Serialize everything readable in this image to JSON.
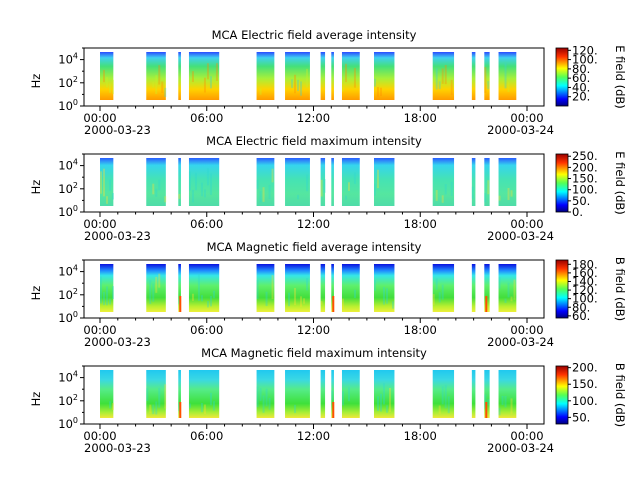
{
  "figure": {
    "background": "#ffffff"
  },
  "chart_data": [
    {
      "type": "heatmap",
      "title": "MCA  Electric field average intensity",
      "ylabel": "Hz",
      "x_ticks": [
        "00:00",
        "06:00",
        "12:00",
        "18:00",
        "00:00"
      ],
      "x_dates": [
        "2000-03-23",
        "2000-03-24"
      ],
      "y_ticks": [
        "10^0",
        "10^2",
        "10^4"
      ],
      "y_scale": "log",
      "ylim": [
        1,
        100000
      ],
      "colorbar_label": "E field (dB)",
      "colorbar_ticks": [
        "20.",
        "40.",
        "60.",
        "80.",
        "100.",
        "120."
      ],
      "colorbar_range": [
        0,
        125
      ],
      "style": "avg_e"
    },
    {
      "type": "heatmap",
      "title": "MCA  Electric field maximum intensity",
      "ylabel": "Hz",
      "x_ticks": [
        "00:00",
        "06:00",
        "12:00",
        "18:00",
        "00:00"
      ],
      "x_dates": [
        "2000-03-23",
        "2000-03-24"
      ],
      "y_ticks": [
        "10^0",
        "10^2",
        "10^4"
      ],
      "y_scale": "log",
      "ylim": [
        1,
        100000
      ],
      "colorbar_label": "E field (dB)",
      "colorbar_ticks": [
        "0.",
        "50.",
        "100.",
        "150.",
        "200.",
        "250."
      ],
      "colorbar_range": [
        0,
        260
      ],
      "style": "max_e"
    },
    {
      "type": "heatmap",
      "title": "MCA  Magnetic field average intensity",
      "ylabel": "Hz",
      "x_ticks": [
        "00:00",
        "06:00",
        "12:00",
        "18:00",
        "00:00"
      ],
      "x_dates": [
        "2000-03-23",
        "2000-03-24"
      ],
      "y_ticks": [
        "10^0",
        "10^2",
        "10^4"
      ],
      "y_scale": "log",
      "ylim": [
        1,
        100000
      ],
      "colorbar_label": "B field (dB)",
      "colorbar_ticks": [
        "60.",
        "80.",
        "100.",
        "120.",
        "140.",
        "160.",
        "180."
      ],
      "colorbar_range": [
        55,
        190
      ],
      "style": "avg_b"
    },
    {
      "type": "heatmap",
      "title": "MCA  Magnetic field maximum intensity",
      "ylabel": "Hz",
      "x_ticks": [
        "00:00",
        "06:00",
        "12:00",
        "18:00",
        "00:00"
      ],
      "x_dates": [
        "2000-03-23",
        "2000-03-24"
      ],
      "y_ticks": [
        "10^0",
        "10^2",
        "10^4"
      ],
      "y_scale": "log",
      "ylim": [
        1,
        100000
      ],
      "colorbar_label": "B field (dB)",
      "colorbar_ticks": [
        "50.",
        "100.",
        "150.",
        "200."
      ],
      "colorbar_range": [
        30,
        205
      ],
      "style": "max_b"
    }
  ],
  "data_intervals_hours": [
    [
      0.0,
      0.75
    ],
    [
      2.6,
      3.7
    ],
    [
      4.4,
      4.55
    ],
    [
      5.0,
      6.7
    ],
    [
      8.8,
      9.8
    ],
    [
      10.4,
      11.8
    ],
    [
      12.4,
      12.65
    ],
    [
      13.0,
      13.15
    ],
    [
      13.6,
      14.6
    ],
    [
      15.4,
      16.55
    ],
    [
      18.7,
      19.9
    ],
    [
      20.9,
      21.1
    ],
    [
      21.6,
      21.9
    ],
    [
      22.4,
      23.4
    ]
  ]
}
